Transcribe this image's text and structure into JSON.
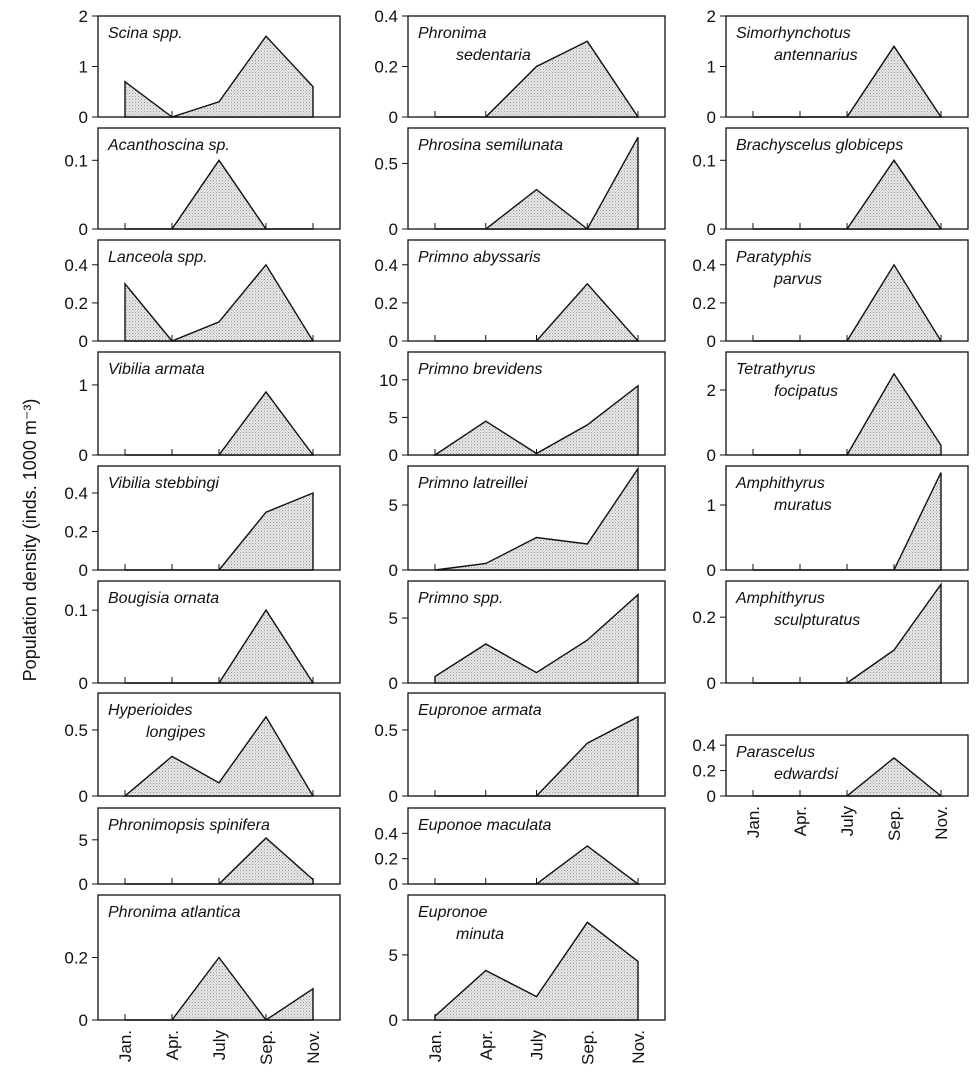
{
  "y_label": "Population density (inds. 1000 m⁻³)",
  "chart_data": [
    {
      "type": "area",
      "title": [
        "Scina spp."
      ],
      "values": [
        0.7,
        0,
        0.3,
        1.6,
        0.6
      ],
      "ylim": [
        0,
        2
      ],
      "yticks": [
        0,
        1,
        2
      ]
    },
    {
      "type": "area",
      "title": [
        "Acanthoscina sp."
      ],
      "values": [
        0,
        0,
        0.1,
        0,
        0
      ],
      "ylim": [
        0,
        0.147
      ],
      "yticks": [
        0,
        0.1
      ]
    },
    {
      "type": "area",
      "title": [
        "Lanceola spp."
      ],
      "values": [
        0.3,
        0,
        0.1,
        0.4,
        0
      ],
      "ylim": [
        0,
        0.53
      ],
      "yticks": [
        0,
        0.2,
        0.4
      ]
    },
    {
      "type": "area",
      "title": [
        "Vibilia armata"
      ],
      "values": [
        0,
        0,
        0,
        0.9,
        0
      ],
      "ylim": [
        0,
        1.47
      ],
      "yticks": [
        0,
        1
      ]
    },
    {
      "type": "area",
      "title": [
        "Vibilia stebbingi"
      ],
      "values": [
        0,
        0,
        0,
        0.3,
        0.4
      ],
      "ylim": [
        0,
        0.54
      ],
      "yticks": [
        0,
        0.2,
        0.4
      ]
    },
    {
      "type": "area",
      "title": [
        "Bougisia ornata"
      ],
      "values": [
        0,
        0,
        0,
        0.1,
        0
      ],
      "ylim": [
        0,
        0.14
      ],
      "yticks": [
        0,
        0.1
      ]
    },
    {
      "type": "area",
      "title": [
        "Hyperioides",
        "longipes"
      ],
      "values": [
        0,
        0.3,
        0.1,
        0.6,
        0
      ],
      "ylim": [
        0,
        0.78
      ],
      "yticks": [
        0,
        0.5
      ]
    },
    {
      "type": "area",
      "title": [
        "Phronimopsis spinifera"
      ],
      "values": [
        0,
        0,
        0,
        5.2,
        0.5
      ],
      "ylim": [
        0,
        8.6
      ],
      "yticks": [
        0,
        5
      ]
    },
    {
      "type": "area",
      "title": [
        "Phronima atlantica"
      ],
      "values": [
        0,
        0,
        0.2,
        0,
        0.1
      ],
      "ylim": [
        0,
        0.4
      ],
      "yticks": [
        0,
        0.2
      ],
      "categories": [
        "Jan.",
        "Apr.",
        "July",
        "Sep.",
        "Nov."
      ]
    },
    {
      "type": "area",
      "title": [
        "Phronima",
        "sedentaria"
      ],
      "values": [
        0,
        0,
        0.2,
        0.3,
        0
      ],
      "ylim": [
        0,
        0.4
      ],
      "yticks": [
        0,
        0.2,
        0.4
      ]
    },
    {
      "type": "area",
      "title": [
        "Phrosina semilunata"
      ],
      "values": [
        0,
        0,
        0.3,
        0,
        0.7
      ],
      "ylim": [
        0,
        0.77
      ],
      "yticks": [
        0,
        0.5
      ]
    },
    {
      "type": "area",
      "title": [
        "Primno abyssaris"
      ],
      "values": [
        0,
        0,
        0,
        0.3,
        0
      ],
      "ylim": [
        0,
        0.53
      ],
      "yticks": [
        0,
        0.2,
        0.4
      ]
    },
    {
      "type": "area",
      "title": [
        "Primno brevidens"
      ],
      "values": [
        0,
        4.5,
        0.2,
        4,
        9.2
      ],
      "ylim": [
        0,
        13.7
      ],
      "yticks": [
        0,
        5,
        10
      ]
    },
    {
      "type": "area",
      "title": [
        "Primno latreillei"
      ],
      "values": [
        0,
        0.5,
        2.5,
        2,
        7.8
      ],
      "ylim": [
        0,
        8
      ],
      "yticks": [
        0,
        5
      ]
    },
    {
      "type": "area",
      "title": [
        "Primno spp."
      ],
      "values": [
        0.5,
        3,
        0.8,
        3.3,
        6.8
      ],
      "ylim": [
        0,
        7.85
      ],
      "yticks": [
        0,
        5
      ]
    },
    {
      "type": "area",
      "title": [
        "Eupronoe armata"
      ],
      "values": [
        0,
        0,
        0,
        0.4,
        0.6
      ],
      "ylim": [
        0,
        0.78
      ],
      "yticks": [
        0,
        0.5
      ]
    },
    {
      "type": "area",
      "title": [
        "Euponoe maculata"
      ],
      "values": [
        0,
        0,
        0,
        0.3,
        0
      ],
      "ylim": [
        0,
        0.6
      ],
      "yticks": [
        0,
        0.2,
        0.4
      ]
    },
    {
      "type": "area",
      "title": [
        "Eupronoe",
        "minuta"
      ],
      "values": [
        0.3,
        3.8,
        1.8,
        7.5,
        4.5
      ],
      "ylim": [
        0,
        9.6
      ],
      "yticks": [
        0,
        5
      ],
      "categories": [
        "Jan.",
        "Apr.",
        "July",
        "Sep.",
        "Nov."
      ]
    },
    {
      "type": "area",
      "title": [
        "Simorhynchotus",
        "antennarius"
      ],
      "values": [
        0,
        0,
        0,
        1.4,
        0
      ],
      "ylim": [
        0,
        2
      ],
      "yticks": [
        0,
        1,
        2
      ]
    },
    {
      "type": "area",
      "title": [
        "Brachyscelus globiceps"
      ],
      "values": [
        0,
        0,
        0,
        0.1,
        0
      ],
      "ylim": [
        0,
        0.147
      ],
      "yticks": [
        0,
        0.1
      ]
    },
    {
      "type": "area",
      "title": [
        "Paratyphis",
        "parvus"
      ],
      "values": [
        0,
        0,
        0,
        0.4,
        0
      ],
      "ylim": [
        0,
        0.53
      ],
      "yticks": [
        0,
        0.2,
        0.4
      ]
    },
    {
      "type": "area",
      "title": [
        "Tetrathyrus",
        "focipatus"
      ],
      "values": [
        0,
        0,
        0,
        2.5,
        0.3
      ],
      "ylim": [
        0,
        3.17
      ],
      "yticks": [
        0,
        2
      ]
    },
    {
      "type": "area",
      "title": [
        "Amphithyrus",
        "muratus"
      ],
      "values": [
        0,
        0,
        0,
        0,
        1.5
      ],
      "ylim": [
        0,
        1.6
      ],
      "yticks": [
        0,
        1
      ]
    },
    {
      "type": "area",
      "title": [
        "Amphithyrus",
        "sculpturatus"
      ],
      "values": [
        0,
        0,
        0,
        0.1,
        0.3
      ],
      "ylim": [
        0,
        0.31
      ],
      "yticks": [
        0,
        0.2
      ]
    },
    {
      "type": "area",
      "title": [
        "Parascelus",
        "edwardsi"
      ],
      "values": [
        0,
        0,
        0,
        0.3,
        0
      ],
      "ylim": [
        0,
        0.48
      ],
      "yticks": [
        0,
        0.2,
        0.4
      ],
      "categories": [
        "Jan.",
        "Apr.",
        "July",
        "Sep.",
        "Nov."
      ]
    }
  ]
}
